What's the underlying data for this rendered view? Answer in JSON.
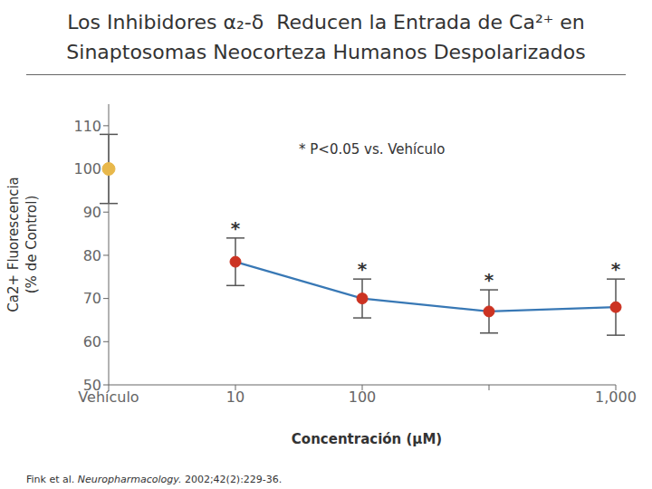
{
  "chart_data": {
    "type": "line",
    "title": [
      "Los Inhibidores α₂-δ  Reducen la Entrada de Ca²⁺ en",
      "Sinaptosomas Neocorteza Humanos Despolarizados"
    ],
    "x_label": "Concentración (μM)",
    "y_label": [
      "Ca2+ Fluorescencia",
      "(% de Control)"
    ],
    "categories": [
      "Vehículo",
      "10",
      "100",
      null,
      "1,000"
    ],
    "series": [
      {
        "type": "scatter",
        "color": "#e8b84b",
        "marker": "circle",
        "values": [
          100,
          null,
          null,
          null,
          null
        ],
        "errors": [
          8,
          null,
          null,
          null,
          null
        ]
      },
      {
        "type": "line",
        "color": "#3878b5",
        "colors": [
          null,
          "#cc3322",
          "#cc3322",
          "#cc3322",
          "#cc3322"
        ],
        "marker": "circle",
        "values": [
          null,
          78.5,
          70.0,
          67.0,
          68.0
        ],
        "errors": [
          null,
          5.5,
          4.5,
          5.0,
          6.5
        ],
        "significance": [
          null,
          "*",
          "*",
          "*",
          "*"
        ]
      }
    ],
    "ylim": [
      50,
      115
    ],
    "yticks": [
      50,
      60,
      70,
      80,
      90,
      100,
      110
    ],
    "grid": false,
    "annotations": [
      "* P<0.05 vs. Vehículo"
    ],
    "footnote": [
      "Fink et al. ",
      "Neuropharmacology.",
      " 2002;42(2):229-36."
    ]
  }
}
